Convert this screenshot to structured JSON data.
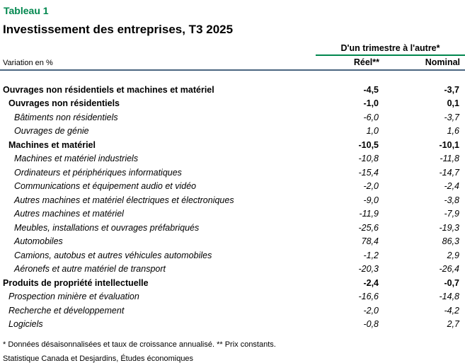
{
  "colors": {
    "accent_green": "#00874E",
    "rule_slate": "#4A6580"
  },
  "chart_data": {
    "type": "table",
    "table_label": "Tableau 1",
    "title": "Investissement des entreprises, T3 2025",
    "unit_label": "Variation en %",
    "group_header": "D'un trimestre à l'autre*",
    "columns": [
      "Réel**",
      "Nominal"
    ],
    "rows": [
      {
        "label": "Ouvrages non résidentiels et machines et matériel",
        "reel": "-4,5",
        "nominal": "-3,7",
        "level": 0,
        "emphasis": "bold"
      },
      {
        "label": "Ouvrages non résidentiels",
        "reel": "-1,0",
        "nominal": "0,1",
        "level": 1,
        "emphasis": "bold"
      },
      {
        "label": "Bâtiments non résidentiels",
        "reel": "-6,0",
        "nominal": "-3,7",
        "level": 2,
        "emphasis": "italic"
      },
      {
        "label": "Ouvrages de génie",
        "reel": "1,0",
        "nominal": "1,6",
        "level": 2,
        "emphasis": "italic"
      },
      {
        "label": "Machines et matériel",
        "reel": "-10,5",
        "nominal": "-10,1",
        "level": 1,
        "emphasis": "bold"
      },
      {
        "label": "Machines et matériel industriels",
        "reel": "-10,8",
        "nominal": "-11,8",
        "level": 2,
        "emphasis": "italic"
      },
      {
        "label": "Ordinateurs et périphériques informatiques",
        "reel": "-15,4",
        "nominal": "-14,7",
        "level": 2,
        "emphasis": "italic"
      },
      {
        "label": "Communications et équipement audio et vidéo",
        "reel": "-2,0",
        "nominal": "-2,4",
        "level": 2,
        "emphasis": "italic"
      },
      {
        "label": "Autres machines et matériel électriques et électroniques",
        "reel": "-9,0",
        "nominal": "-3,8",
        "level": 2,
        "emphasis": "italic"
      },
      {
        "label": "Autres machines et matériel",
        "reel": "-11,9",
        "nominal": "-7,9",
        "level": 2,
        "emphasis": "italic"
      },
      {
        "label": "Meubles, installations et ouvrages préfabriqués",
        "reel": "-25,6",
        "nominal": "-19,3",
        "level": 2,
        "emphasis": "italic"
      },
      {
        "label": "Automobiles",
        "reel": "78,4",
        "nominal": "86,3",
        "level": 2,
        "emphasis": "italic"
      },
      {
        "label": "Camions, autobus et autres véhicules automobiles",
        "reel": "-1,2",
        "nominal": "2,9",
        "level": 2,
        "emphasis": "italic"
      },
      {
        "label": "Aéronefs et autre matériel de transport",
        "reel": "-20,3",
        "nominal": "-26,4",
        "level": 2,
        "emphasis": "italic"
      },
      {
        "label": "Produits de propriété intellectuelle",
        "reel": "-2,4",
        "nominal": "-0,7",
        "level": 0,
        "emphasis": "bold"
      },
      {
        "label": "Prospection minière et évaluation",
        "reel": "-16,6",
        "nominal": "-14,8",
        "level": 1,
        "emphasis": "italic"
      },
      {
        "label": "Recherche et développement",
        "reel": "-2,0",
        "nominal": "-4,2",
        "level": 1,
        "emphasis": "italic"
      },
      {
        "label": "Logiciels",
        "reel": "-0,8",
        "nominal": "2,7",
        "level": 1,
        "emphasis": "italic"
      }
    ],
    "footnote": "* Données désaisonnalisées et taux de croissance annualisé. ** Prix constants.",
    "source": "Statistique Canada et Desjardins, Études économiques"
  }
}
